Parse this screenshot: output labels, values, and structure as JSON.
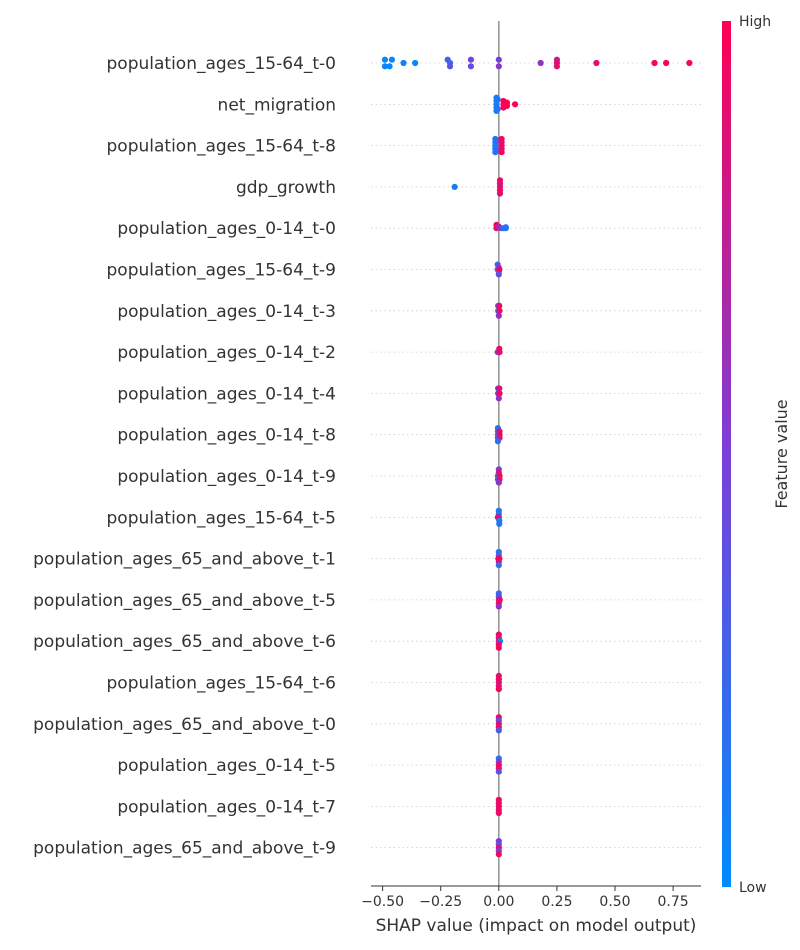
{
  "chart_data": {
    "type": "scatter",
    "subtype": "shap_beeswarm",
    "xlabel": "SHAP value (impact on model output)",
    "xlim": [
      -0.55,
      0.87
    ],
    "x_ticks": [
      -0.5,
      -0.25,
      0.0,
      0.25,
      0.5,
      0.75
    ],
    "x_tick_labels": [
      "−0.50",
      "−0.25",
      "0.00",
      "0.25",
      "0.50",
      "0.75"
    ],
    "colorbar": {
      "title": "Feature value",
      "high_label": "High",
      "low_label": "Low",
      "low_color": "#008bfb",
      "mid_color": "#7b3fd8",
      "high_color": "#ff0052"
    },
    "axis_color": "#999999",
    "grid_color": "#cccccc",
    "features": [
      {
        "name": "population_ages_15-64_t-0",
        "points": [
          {
            "x": -0.49,
            "v": 0.02,
            "o": -1
          },
          {
            "x": -0.47,
            "v": 0.02,
            "o": 1
          },
          {
            "x": -0.49,
            "v": 0.05,
            "o": 1
          },
          {
            "x": -0.46,
            "v": 0.03,
            "o": -1
          },
          {
            "x": -0.41,
            "v": 0.06,
            "o": 0
          },
          {
            "x": -0.36,
            "v": 0.05,
            "o": 0
          },
          {
            "x": -0.22,
            "v": 0.3,
            "o": -1
          },
          {
            "x": -0.21,
            "v": 0.25,
            "o": 0
          },
          {
            "x": -0.21,
            "v": 0.35,
            "o": 1
          },
          {
            "x": -0.12,
            "v": 0.45,
            "o": -1
          },
          {
            "x": -0.12,
            "v": 0.4,
            "o": 1
          },
          {
            "x": 0.0,
            "v": 0.5,
            "o": -1
          },
          {
            "x": 0.0,
            "v": 0.55,
            "o": 1
          },
          {
            "x": 0.18,
            "v": 0.6,
            "o": 0
          },
          {
            "x": 0.25,
            "v": 0.8,
            "o": -1
          },
          {
            "x": 0.25,
            "v": 0.85,
            "o": 0
          },
          {
            "x": 0.25,
            "v": 0.9,
            "o": 1
          },
          {
            "x": 0.42,
            "v": 0.9,
            "o": 0
          },
          {
            "x": 0.67,
            "v": 0.95,
            "o": 0
          },
          {
            "x": 0.72,
            "v": 1.0,
            "o": 0
          },
          {
            "x": 0.82,
            "v": 1.0,
            "o": 0
          }
        ]
      },
      {
        "name": "net_migration",
        "points": [
          {
            "x": -0.01,
            "v": 0.05,
            "o": -2
          },
          {
            "x": -0.01,
            "v": 0.08,
            "o": -1
          },
          {
            "x": -0.01,
            "v": 0.1,
            "o": 0
          },
          {
            "x": -0.01,
            "v": 0.12,
            "o": 1
          },
          {
            "x": -0.01,
            "v": 0.1,
            "o": 2
          },
          {
            "x": -0.005,
            "v": 0.15,
            "o": -1.5
          },
          {
            "x": -0.005,
            "v": 0.15,
            "o": 1.5
          },
          {
            "x": 0.02,
            "v": 0.95,
            "o": -1
          },
          {
            "x": 0.02,
            "v": 0.95,
            "o": 0
          },
          {
            "x": 0.02,
            "v": 0.95,
            "o": 1
          },
          {
            "x": 0.035,
            "v": 1.0,
            "o": -0.5
          },
          {
            "x": 0.035,
            "v": 1.0,
            "o": 0.5
          },
          {
            "x": 0.07,
            "v": 1.0,
            "o": 0
          }
        ]
      },
      {
        "name": "population_ages_15-64_t-8",
        "points": [
          {
            "x": -0.015,
            "v": 0.1,
            "o": -2
          },
          {
            "x": -0.015,
            "v": 0.1,
            "o": -1
          },
          {
            "x": -0.015,
            "v": 0.1,
            "o": 0
          },
          {
            "x": -0.015,
            "v": 0.1,
            "o": 1
          },
          {
            "x": -0.015,
            "v": 0.1,
            "o": 2
          },
          {
            "x": -0.005,
            "v": 0.3,
            "o": -1.5
          },
          {
            "x": -0.005,
            "v": 0.25,
            "o": 1.5
          },
          {
            "x": 0.012,
            "v": 0.95,
            "o": -2
          },
          {
            "x": 0.012,
            "v": 0.9,
            "o": -1
          },
          {
            "x": 0.012,
            "v": 0.95,
            "o": 0
          },
          {
            "x": 0.012,
            "v": 0.9,
            "o": 1
          },
          {
            "x": 0.012,
            "v": 0.95,
            "o": 2
          }
        ]
      },
      {
        "name": "gdp_growth",
        "points": [
          {
            "x": -0.19,
            "v": 0.1,
            "o": 0
          },
          {
            "x": 0.005,
            "v": 0.95,
            "o": -2
          },
          {
            "x": 0.005,
            "v": 0.9,
            "o": -1
          },
          {
            "x": 0.005,
            "v": 0.85,
            "o": 0
          },
          {
            "x": 0.005,
            "v": 0.95,
            "o": 1
          },
          {
            "x": 0.005,
            "v": 0.9,
            "o": 2
          }
        ]
      },
      {
        "name": "population_ages_0-14_t-0",
        "points": [
          {
            "x": -0.01,
            "v": 0.95,
            "o": -1
          },
          {
            "x": -0.01,
            "v": 0.9,
            "o": 0
          },
          {
            "x": 0.0,
            "v": 0.7,
            "o": -0.5
          },
          {
            "x": 0.01,
            "v": 0.5,
            "o": 0
          },
          {
            "x": 0.02,
            "v": 0.2,
            "o": 0
          },
          {
            "x": 0.03,
            "v": 0.1,
            "o": 0
          },
          {
            "x": 0.03,
            "v": 0.15,
            "o": -0.3
          }
        ]
      },
      {
        "name": "population_ages_15-64_t-9",
        "points": [
          {
            "x": -0.005,
            "v": 0.3,
            "o": -1.5
          },
          {
            "x": 0.0,
            "v": 0.6,
            "o": -0.5
          },
          {
            "x": 0.0,
            "v": 0.9,
            "o": 0.5
          },
          {
            "x": -0.005,
            "v": 0.2,
            "o": 0
          },
          {
            "x": 0.002,
            "v": 0.95,
            "o": 0
          },
          {
            "x": 0.0,
            "v": 0.4,
            "o": 1.5
          }
        ]
      },
      {
        "name": "population_ages_0-14_t-3",
        "points": [
          {
            "x": -0.003,
            "v": 0.4,
            "o": -1.5
          },
          {
            "x": 0.002,
            "v": 0.9,
            "o": -1.5
          },
          {
            "x": -0.003,
            "v": 0.2,
            "o": 0
          },
          {
            "x": 0.003,
            "v": 0.95,
            "o": 0
          },
          {
            "x": 0.0,
            "v": 0.6,
            "o": 1.5
          }
        ]
      },
      {
        "name": "population_ages_0-14_t-2",
        "points": [
          {
            "x": 0.002,
            "v": 0.95,
            "o": -1
          },
          {
            "x": -0.005,
            "v": 0.3,
            "o": 0
          },
          {
            "x": 0.0,
            "v": 0.6,
            "o": 0
          },
          {
            "x": 0.003,
            "v": 0.9,
            "o": 0
          }
        ]
      },
      {
        "name": "population_ages_0-14_t-4",
        "points": [
          {
            "x": -0.003,
            "v": 0.3,
            "o": -1.5
          },
          {
            "x": 0.002,
            "v": 0.9,
            "o": -1.5
          },
          {
            "x": -0.003,
            "v": 0.4,
            "o": 0
          },
          {
            "x": 0.003,
            "v": 0.95,
            "o": 0
          },
          {
            "x": 0.0,
            "v": 0.6,
            "o": 1.5
          }
        ]
      },
      {
        "name": "population_ages_0-14_t-8",
        "points": [
          {
            "x": -0.004,
            "v": 0.1,
            "o": -2
          },
          {
            "x": -0.004,
            "v": 0.15,
            "o": -1
          },
          {
            "x": 0.003,
            "v": 0.9,
            "o": -1
          },
          {
            "x": -0.004,
            "v": 0.2,
            "o": 0
          },
          {
            "x": 0.003,
            "v": 0.95,
            "o": 0
          },
          {
            "x": -0.004,
            "v": 0.1,
            "o": 1
          },
          {
            "x": 0.003,
            "v": 0.85,
            "o": 1
          },
          {
            "x": -0.004,
            "v": 0.2,
            "o": 2
          }
        ]
      },
      {
        "name": "population_ages_0-14_t-9",
        "points": [
          {
            "x": 0.0,
            "v": 0.5,
            "o": -2
          },
          {
            "x": 0.0,
            "v": 0.9,
            "o": -1
          },
          {
            "x": -0.004,
            "v": 0.2,
            "o": 0
          },
          {
            "x": 0.003,
            "v": 0.95,
            "o": 0
          },
          {
            "x": -0.004,
            "v": 0.1,
            "o": 1
          },
          {
            "x": 0.003,
            "v": 0.9,
            "o": 1
          },
          {
            "x": 0.0,
            "v": 0.6,
            "o": 2
          }
        ]
      },
      {
        "name": "population_ages_15-64_t-5",
        "points": [
          {
            "x": 0.0,
            "v": 0.1,
            "o": -2
          },
          {
            "x": 0.0,
            "v": 0.15,
            "o": -1
          },
          {
            "x": -0.004,
            "v": 0.95,
            "o": 0
          },
          {
            "x": 0.0,
            "v": 0.9,
            "o": 0
          },
          {
            "x": 0.002,
            "v": 0.1,
            "o": 1
          },
          {
            "x": 0.002,
            "v": 0.15,
            "o": 2
          }
        ]
      },
      {
        "name": "population_ages_65_and_above_t-1",
        "points": [
          {
            "x": 0.0,
            "v": 0.15,
            "o": -2
          },
          {
            "x": 0.0,
            "v": 0.3,
            "o": -1
          },
          {
            "x": -0.002,
            "v": 0.9,
            "o": 0
          },
          {
            "x": 0.002,
            "v": 0.95,
            "o": 0
          },
          {
            "x": 0.0,
            "v": 0.85,
            "o": 1
          },
          {
            "x": 0.0,
            "v": 0.2,
            "o": 2
          }
        ]
      },
      {
        "name": "population_ages_65_and_above_t-5",
        "points": [
          {
            "x": 0.0,
            "v": 0.2,
            "o": -2
          },
          {
            "x": 0.0,
            "v": 0.4,
            "o": -1
          },
          {
            "x": 0.0,
            "v": 0.8,
            "o": 0
          },
          {
            "x": 0.004,
            "v": 0.95,
            "o": 0
          },
          {
            "x": 0.0,
            "v": 0.9,
            "o": 1
          },
          {
            "x": 0.0,
            "v": 0.6,
            "o": 2
          }
        ]
      },
      {
        "name": "population_ages_65_and_above_t-6",
        "points": [
          {
            "x": 0.0,
            "v": 0.95,
            "o": -2
          },
          {
            "x": 0.0,
            "v": 0.9,
            "o": -1
          },
          {
            "x": 0.0,
            "v": 0.85,
            "o": 0
          },
          {
            "x": 0.005,
            "v": 0.05,
            "o": 0
          },
          {
            "x": 0.0,
            "v": 0.9,
            "o": 1
          },
          {
            "x": 0.0,
            "v": 0.95,
            "o": 2
          }
        ]
      },
      {
        "name": "population_ages_15-64_t-6",
        "points": [
          {
            "x": 0.0,
            "v": 0.9,
            "o": -2
          },
          {
            "x": 0.0,
            "v": 0.95,
            "o": -1
          },
          {
            "x": 0.0,
            "v": 0.85,
            "o": 0
          },
          {
            "x": 0.0,
            "v": 0.9,
            "o": 1
          },
          {
            "x": 0.0,
            "v": 0.95,
            "o": 2
          }
        ]
      },
      {
        "name": "population_ages_65_and_above_t-0",
        "points": [
          {
            "x": 0.0,
            "v": 0.9,
            "o": -2
          },
          {
            "x": 0.0,
            "v": 0.4,
            "o": -1
          },
          {
            "x": 0.0,
            "v": 0.85,
            "o": 0
          },
          {
            "x": 0.0,
            "v": 0.9,
            "o": 1
          },
          {
            "x": 0.0,
            "v": 0.3,
            "o": 2
          }
        ]
      },
      {
        "name": "population_ages_0-14_t-5",
        "points": [
          {
            "x": 0.0,
            "v": 0.2,
            "o": -2
          },
          {
            "x": 0.0,
            "v": 0.5,
            "o": -1
          },
          {
            "x": 0.0,
            "v": 0.95,
            "o": 0
          },
          {
            "x": 0.0,
            "v": 0.9,
            "o": 1
          },
          {
            "x": 0.0,
            "v": 0.4,
            "o": 2
          }
        ]
      },
      {
        "name": "population_ages_0-14_t-7",
        "points": [
          {
            "x": 0.0,
            "v": 0.95,
            "o": -2
          },
          {
            "x": 0.0,
            "v": 0.9,
            "o": -1
          },
          {
            "x": 0.0,
            "v": 0.95,
            "o": 0
          },
          {
            "x": 0.0,
            "v": 0.9,
            "o": 1
          },
          {
            "x": 0.0,
            "v": 0.95,
            "o": 2
          }
        ]
      },
      {
        "name": "population_ages_65_and_above_t-9",
        "points": [
          {
            "x": 0.0,
            "v": 0.5,
            "o": -2
          },
          {
            "x": 0.0,
            "v": 0.4,
            "o": -1
          },
          {
            "x": 0.0,
            "v": 0.9,
            "o": 0
          },
          {
            "x": 0.0,
            "v": 0.5,
            "o": 1
          },
          {
            "x": 0.0,
            "v": 0.95,
            "o": 2
          }
        ]
      }
    ]
  }
}
